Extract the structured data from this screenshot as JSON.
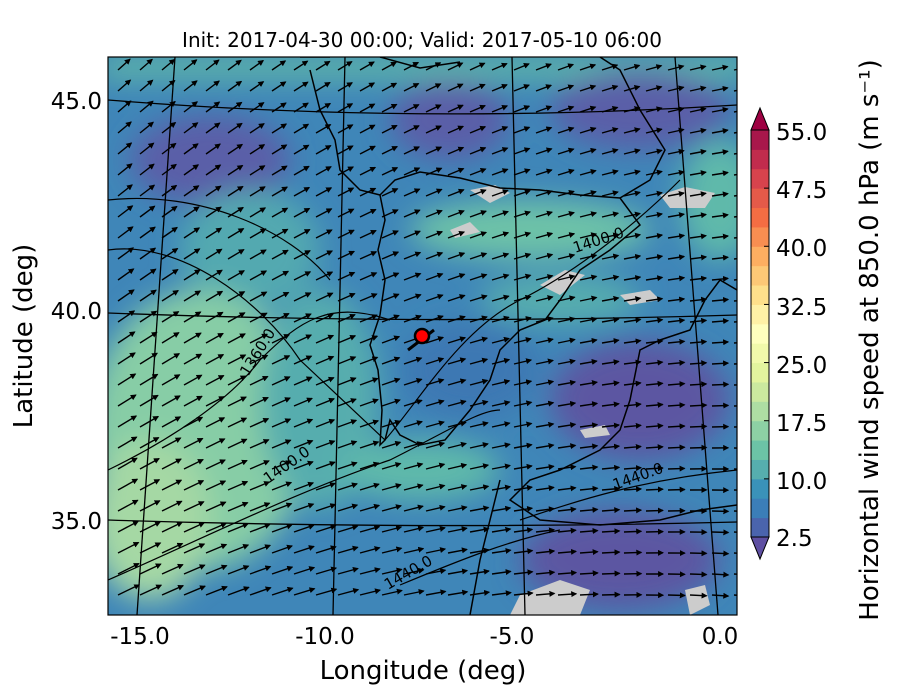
{
  "chart_data": {
    "type": "map",
    "title": "Init: 2017-04-30 00:00; Valid: 2017-05-10 06:00",
    "xlabel": "Longitude (deg)",
    "ylabel": "Latitude (deg)",
    "x_ticks": [
      "-15.0",
      "-10.0",
      "-5.0",
      "0.0"
    ],
    "x_tick_values": [
      -15,
      -10,
      -5,
      0
    ],
    "y_ticks": [
      "45.0",
      "40.0",
      "35.0"
    ],
    "y_tick_values": [
      45,
      40,
      35
    ],
    "xlim": [
      -16,
      0.3
    ],
    "ylim": [
      33,
      46
    ],
    "colorbar": {
      "label": "Horizontal wind speed at 850.0 hPa (m s⁻¹)",
      "ticks": [
        "2.5",
        "10.0",
        "17.5",
        "25.0",
        "32.5",
        "40.0",
        "47.5",
        "55.0"
      ],
      "tick_values": [
        2.5,
        10,
        17.5,
        25,
        32.5,
        40,
        47.5,
        55
      ],
      "min": 2.5,
      "max": 55,
      "step": 2.5,
      "extend": "both",
      "colormap": "Spectral_r"
    },
    "contour_labels": [
      "1360.0",
      "1400.0",
      "1400.0",
      "1400.0",
      "1440.0",
      "1440.0"
    ],
    "marker": {
      "lon": -7.6,
      "lat": 39.4,
      "color": "#ff0000"
    },
    "colors": {
      "missing": "#cccccc",
      "contour": "#000000"
    }
  }
}
